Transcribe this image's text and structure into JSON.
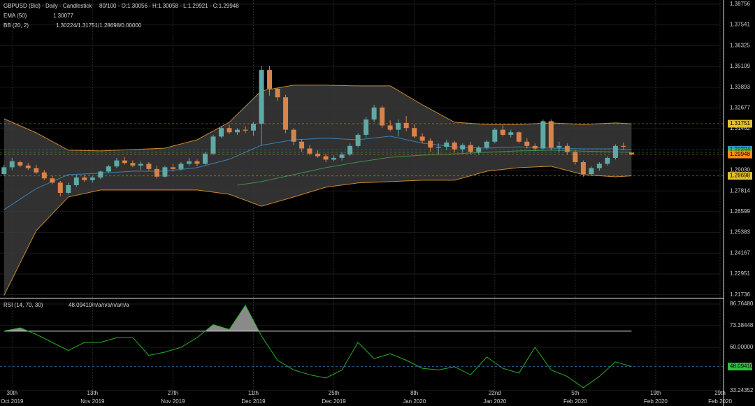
{
  "chart_data": [
    {
      "type": "candlestick",
      "title": "GBPUSD (Bid) - Daily - Candlestick",
      "header": "80/100 - O:1.30056 - H:1.30058 - L:1.29921 - C:1.29948",
      "x": [
        -1,
        0,
        1,
        2,
        3,
        4,
        5,
        6,
        7,
        8,
        9,
        10,
        11,
        12,
        13,
        14,
        15,
        16,
        17,
        18,
        19,
        20,
        21,
        22,
        23,
        24,
        25,
        26,
        27,
        28,
        29,
        30,
        31,
        32,
        33,
        34,
        35,
        36,
        37,
        38,
        39,
        40,
        41,
        42,
        43,
        44,
        45,
        46,
        47,
        48,
        49,
        50,
        51,
        52,
        53,
        54,
        55,
        56,
        57,
        58,
        59,
        60,
        61,
        62,
        63,
        64,
        65,
        66,
        67,
        68,
        69,
        70,
        71,
        72,
        73,
        74,
        75,
        76,
        77
      ],
      "open": [
        1.288,
        1.292,
        1.295,
        1.293,
        1.2915,
        1.289,
        1.2855,
        1.283,
        1.277,
        1.2815,
        1.286,
        1.2845,
        1.286,
        1.2895,
        1.2925,
        1.296,
        1.2945,
        1.293,
        1.294,
        1.291,
        1.2865,
        1.292,
        1.291,
        1.294,
        1.2955,
        1.294,
        1.3,
        1.31,
        1.315,
        1.3125,
        1.314,
        1.3135,
        1.3175,
        1.349,
        1.338,
        1.333,
        1.314,
        1.307,
        1.303,
        1.3,
        1.2985,
        1.2965,
        1.2975,
        1.2995,
        1.3045,
        1.311,
        1.32,
        1.327,
        1.3165,
        1.314,
        1.318,
        1.315,
        1.31,
        1.3075,
        1.3035,
        1.304,
        1.3065,
        1.3025,
        1.305,
        1.301,
        1.3035,
        1.307,
        1.314,
        1.311,
        1.3125,
        1.307,
        1.3045,
        1.303,
        1.319,
        1.3035,
        1.3045,
        1.301,
        1.295,
        1.288,
        1.2915,
        1.294,
        1.2975,
        1.3045,
        1.30056
      ],
      "high": [
        1.2935,
        1.2975,
        1.296,
        1.2945,
        1.2935,
        1.2905,
        1.287,
        1.284,
        1.283,
        1.2875,
        1.2875,
        1.287,
        1.29,
        1.2935,
        1.2975,
        1.298,
        1.296,
        1.2955,
        1.295,
        1.293,
        1.293,
        1.294,
        1.295,
        1.2975,
        1.2965,
        1.301,
        1.311,
        1.316,
        1.317,
        1.315,
        1.316,
        1.3185,
        1.3515,
        1.3515,
        1.3385,
        1.3345,
        1.315,
        1.3085,
        1.305,
        1.302,
        1.3,
        1.299,
        1.301,
        1.306,
        1.312,
        1.3215,
        1.3285,
        1.328,
        1.3195,
        1.32,
        1.322,
        1.317,
        1.312,
        1.309,
        1.306,
        1.308,
        1.3075,
        1.306,
        1.307,
        1.3045,
        1.308,
        1.315,
        1.3165,
        1.314,
        1.313,
        1.309,
        1.306,
        1.32,
        1.32,
        1.307,
        1.306,
        1.302,
        1.296,
        1.2925,
        1.295,
        1.2985,
        1.3055,
        1.3065,
        1.30058
      ],
      "low": [
        1.287,
        1.2905,
        1.292,
        1.2905,
        1.288,
        1.2845,
        1.282,
        1.275,
        1.276,
        1.2805,
        1.2835,
        1.283,
        1.285,
        1.2885,
        1.2915,
        1.2935,
        1.292,
        1.2905,
        1.29,
        1.2855,
        1.286,
        1.2895,
        1.29,
        1.293,
        1.2925,
        1.2935,
        1.299,
        1.309,
        1.3115,
        1.311,
        1.312,
        1.3105,
        1.305,
        1.334,
        1.331,
        1.312,
        1.305,
        1.301,
        1.299,
        1.2975,
        1.295,
        1.2955,
        1.296,
        1.2985,
        1.3035,
        1.3095,
        1.3185,
        1.315,
        1.313,
        1.31,
        1.313,
        1.309,
        1.306,
        1.301,
        1.2995,
        1.302,
        1.301,
        1.3005,
        1.3,
        1.2995,
        1.3025,
        1.306,
        1.31,
        1.3095,
        1.306,
        1.303,
        1.3015,
        1.3025,
        1.302,
        1.301,
        1.2995,
        1.2935,
        1.2865,
        1.287,
        1.29,
        1.293,
        1.2965,
        1.302,
        1.29921
      ],
      "close": [
        1.292,
        1.2955,
        1.293,
        1.2915,
        1.289,
        1.2855,
        1.283,
        1.277,
        1.2815,
        1.286,
        1.2845,
        1.286,
        1.2895,
        1.2925,
        1.296,
        1.2945,
        1.293,
        1.294,
        1.291,
        1.2865,
        1.292,
        1.291,
        1.294,
        1.2955,
        1.294,
        1.3,
        1.31,
        1.315,
        1.3125,
        1.314,
        1.3135,
        1.3175,
        1.349,
        1.338,
        1.333,
        1.314,
        1.307,
        1.303,
        1.3,
        1.2985,
        1.2965,
        1.2975,
        1.2995,
        1.3045,
        1.311,
        1.32,
        1.327,
        1.3165,
        1.314,
        1.318,
        1.315,
        1.31,
        1.3075,
        1.3035,
        1.304,
        1.3065,
        1.3025,
        1.305,
        1.301,
        1.3035,
        1.307,
        1.314,
        1.311,
        1.3125,
        1.307,
        1.3045,
        1.303,
        1.319,
        1.3035,
        1.3045,
        1.301,
        1.295,
        1.288,
        1.2915,
        1.294,
        1.2975,
        1.3045,
        1.304,
        1.29948
      ],
      "up_color": "#5fa9a6",
      "down_color": "#d9834c",
      "xlim": [
        -1.5,
        88
      ],
      "ylim": [
        1.216,
        1.39
      ],
      "yticks": [
        1.38756,
        1.37541,
        1.36325,
        1.35109,
        1.33893,
        1.32677,
        1.31462,
        {
          "value": 1.2903,
          "label": "1.29030"
        },
        1.27814,
        1.26599,
        1.25383,
        1.24167,
        1.22951,
        1.21736
      ],
      "xticks": [
        {
          "value": 0,
          "label": [
            "30th",
            "Oct 2019"
          ]
        },
        {
          "value": 10,
          "label": [
            "13th",
            "Nov 2019"
          ]
        },
        {
          "value": 20,
          "label": [
            "27th",
            "Nov 2019"
          ]
        },
        {
          "value": 30,
          "label": [
            "11th",
            "Dec 2019"
          ]
        },
        {
          "value": 40,
          "label": [
            "25th",
            "Dec 2019"
          ]
        },
        {
          "value": 50,
          "label": [
            "8th",
            "Jan 2020"
          ]
        },
        {
          "value": 60,
          "label": [
            "22nd",
            "Jan 2020"
          ]
        },
        {
          "value": 70,
          "label": [
            "5th",
            "Feb 2020"
          ]
        },
        {
          "value": 80,
          "label": [
            "19th",
            "Feb 2020"
          ]
        },
        {
          "value": 88,
          "label": [
            "29th",
            "Feb 2020"
          ]
        }
      ],
      "ema": {
        "label": "EMA (50)",
        "value_text": "1.30077",
        "color": "#3f8f4f",
        "x": [
          28,
          31,
          35,
          39,
          43,
          47,
          51,
          55,
          59,
          63,
          67,
          71,
          75,
          77
        ],
        "values": [
          1.2815,
          1.2836,
          1.2877,
          1.2918,
          1.295,
          1.2979,
          1.2991,
          1.2999,
          1.3008,
          1.3016,
          1.302,
          1.3015,
          1.301,
          1.30077
        ]
      },
      "bollinger": {
        "label": "BB (20, 2)",
        "value_text": "1.30224/1.31751/1.28698/0.00000",
        "band_color": "#c8892e",
        "middle_color": "#3d7fb5",
        "fill": "#3a3a3a",
        "x": [
          -1,
          3,
          7,
          11,
          15,
          19,
          23,
          27,
          31,
          35,
          39,
          43,
          47,
          51,
          55,
          59,
          63,
          67,
          71,
          75,
          77
        ],
        "upper": [
          1.3204,
          1.3122,
          1.302,
          1.3016,
          1.3024,
          1.3032,
          1.3081,
          1.3184,
          1.3368,
          1.3401,
          1.3401,
          1.3397,
          1.3397,
          1.3286,
          1.3184,
          1.3171,
          1.3171,
          1.318,
          1.3171,
          1.318,
          1.31751
        ],
        "middle": [
          1.2672,
          1.2795,
          1.2877,
          1.2885,
          1.2897,
          1.2897,
          1.2918,
          1.2967,
          1.3049,
          1.3081,
          1.309,
          1.3081,
          1.3102,
          1.3061,
          1.304,
          1.3032,
          1.304,
          1.3032,
          1.3028,
          1.3028,
          1.30224
        ],
        "lower": [
          1.217,
          1.2549,
          1.2746,
          1.2787,
          1.2787,
          1.2787,
          1.2787,
          1.2762,
          1.2692,
          1.2746,
          1.2803,
          1.2828,
          1.2836,
          1.2844,
          1.2844,
          1.2897,
          1.2918,
          1.2926,
          1.2877,
          1.2864,
          1.28698
        ]
      },
      "price_markers": [
        {
          "value": 1.31751,
          "color": "#e2c22c"
        },
        {
          "value": 1.30224,
          "color": "#3b8fd6"
        },
        {
          "value": 1.30077,
          "color": "#2fc43a"
        },
        {
          "value": 1.29948,
          "color": "#ff8a1c"
        },
        {
          "value": 1.28698,
          "color": "#e2c22c"
        }
      ],
      "grid": true
    },
    {
      "type": "line",
      "title": "RSI (14, 70, 30)",
      "value_text": "48.09410/n/a/n/a/n/a/n/a",
      "color": "#27b027",
      "overbought": 70,
      "fill": "#8a8a8a",
      "x": [
        -1,
        1,
        3,
        5,
        7,
        9,
        11,
        13,
        15,
        17,
        19,
        21,
        23,
        25,
        27,
        29,
        31,
        33,
        35,
        37,
        39,
        41,
        43,
        45,
        47,
        49,
        51,
        53,
        55,
        57,
        59,
        61,
        63,
        65,
        67,
        69,
        71,
        73,
        75,
        77
      ],
      "values": [
        70,
        72,
        68,
        63,
        58,
        63,
        63,
        66,
        66,
        55,
        57,
        60,
        66,
        74,
        71,
        86,
        67,
        52,
        46,
        43,
        41,
        46,
        63,
        53,
        56,
        52,
        47,
        46,
        48,
        43,
        54,
        47,
        44,
        60,
        46,
        42,
        35,
        42,
        51,
        48.0941
      ],
      "xlim": [
        -1.5,
        88
      ],
      "ylim": [
        27.6,
        89.8
      ],
      "yticks": [
        {
          "value": 86.7648,
          "label": "86.76480"
        },
        73.38448,
        {
          "value": 60,
          "label": "60.00000"
        },
        33.24352
      ],
      "markers": [
        {
          "value": 48.0941,
          "label": "48.09410",
          "color": "#2fc43a"
        }
      ]
    }
  ]
}
